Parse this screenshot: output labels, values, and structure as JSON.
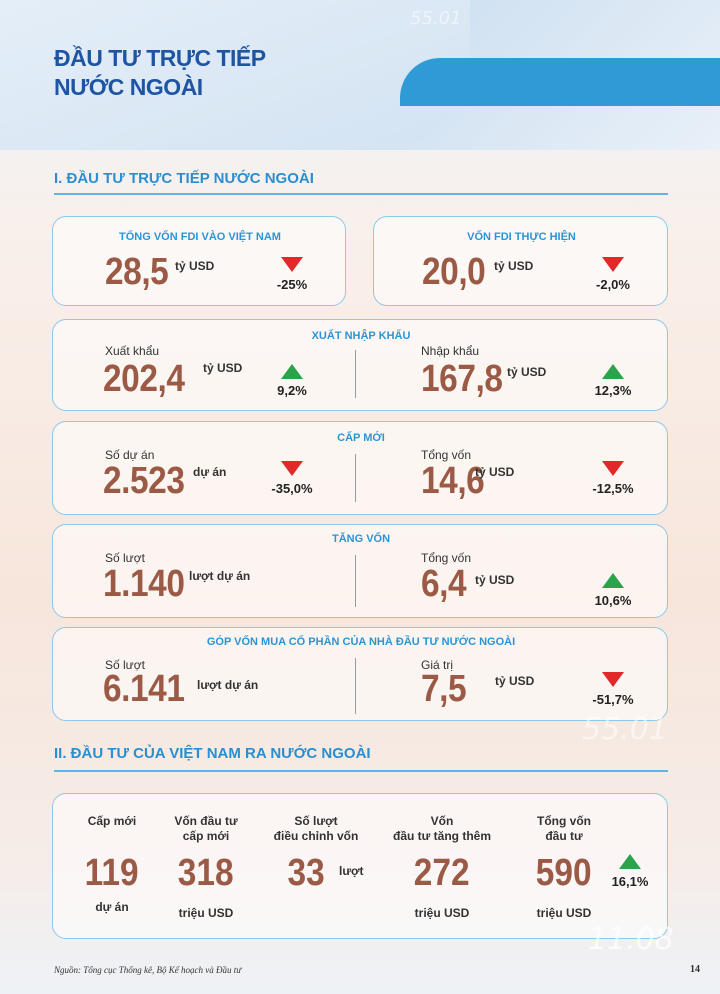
{
  "title": "ĐẦU TƯ TRỰC TIẾP\nNƯỚC NGOÀI",
  "deco": [
    "55.01",
    "55.01",
    "11.08"
  ],
  "colors": {
    "accent": "#2a95d5",
    "value": "#9b5a45",
    "down": "#e02a2a",
    "up": "#2ba34a"
  },
  "section1": {
    "title": "I. ĐẦU TƯ TRỰC TIẾP NƯỚC NGOÀI",
    "total_fdi": {
      "label": "TỔNG VỐN FDI VÀO VIỆT NAM",
      "value": "28,5",
      "unit": "tỷ USD",
      "change": "-25%",
      "trend": "down"
    },
    "fdi_realized": {
      "label": "VỐN FDI THỰC HIỆN",
      "value": "20,0",
      "unit": "tỷ USD",
      "change": "-2,0%",
      "trend": "down"
    },
    "trade": {
      "label": "XUẤT NHẬP KHẨU",
      "left": {
        "caption": "Xuất khẩu",
        "value": "202,4",
        "unit": "tỷ USD",
        "change": "9,2%",
        "trend": "up"
      },
      "right": {
        "caption": "Nhập khẩu",
        "value": "167,8",
        "unit": "tỷ USD",
        "change": "12,3%",
        "trend": "up"
      }
    },
    "new": {
      "label": "CẤP MỚI",
      "left": {
        "caption": "Số dự án",
        "value": "2.523",
        "unit": "dự án",
        "change": "-35,0%",
        "trend": "down"
      },
      "right": {
        "caption": "Tổng vốn",
        "value": "14,6",
        "unit": "tỷ USD",
        "change": "-12,5%",
        "trend": "down"
      }
    },
    "increase": {
      "label": "TĂNG VỐN",
      "left": {
        "caption": "Số lượt",
        "value": "1.140",
        "unit": "lượt dự án"
      },
      "right": {
        "caption": "Tổng vốn",
        "value": "6,4",
        "unit": "tỷ USD",
        "change": "10,6%",
        "trend": "up"
      }
    },
    "shares": {
      "label": "GÓP VỐN MUA CỔ PHẦN CỦA NHÀ ĐẦU TƯ NƯỚC NGOÀI",
      "left": {
        "caption": "Số lượt",
        "value": "6.141",
        "unit": "lượt dự án"
      },
      "right": {
        "caption": "Giá trị",
        "value": "7,5",
        "unit": "tỷ USD",
        "change": "-51,7%",
        "trend": "down"
      }
    }
  },
  "section2": {
    "title": "II. ĐẦU TƯ CỦA VIỆT NAM RA NƯỚC NGOÀI",
    "columns": [
      {
        "head": "Cấp mới",
        "value": "119",
        "unit": "dự án"
      },
      {
        "head": "Vốn đầu tư\ncấp mới",
        "value": "318",
        "unit": "triệu USD"
      },
      {
        "head": "Số lượt\nđiều chỉnh vốn",
        "value": "33",
        "unit": "lượt"
      },
      {
        "head": "Vốn\nđầu tư tăng thêm",
        "value": "272",
        "unit": "triệu USD"
      },
      {
        "head": "Tổng vốn\nđầu tư",
        "value": "590",
        "unit": "triệu USD"
      }
    ],
    "total_change": "16,1%",
    "total_trend": "up"
  },
  "source": "Nguồn: Tổng cục Thống kê, Bộ Kế hoạch và Đầu tư",
  "page_number": "14"
}
